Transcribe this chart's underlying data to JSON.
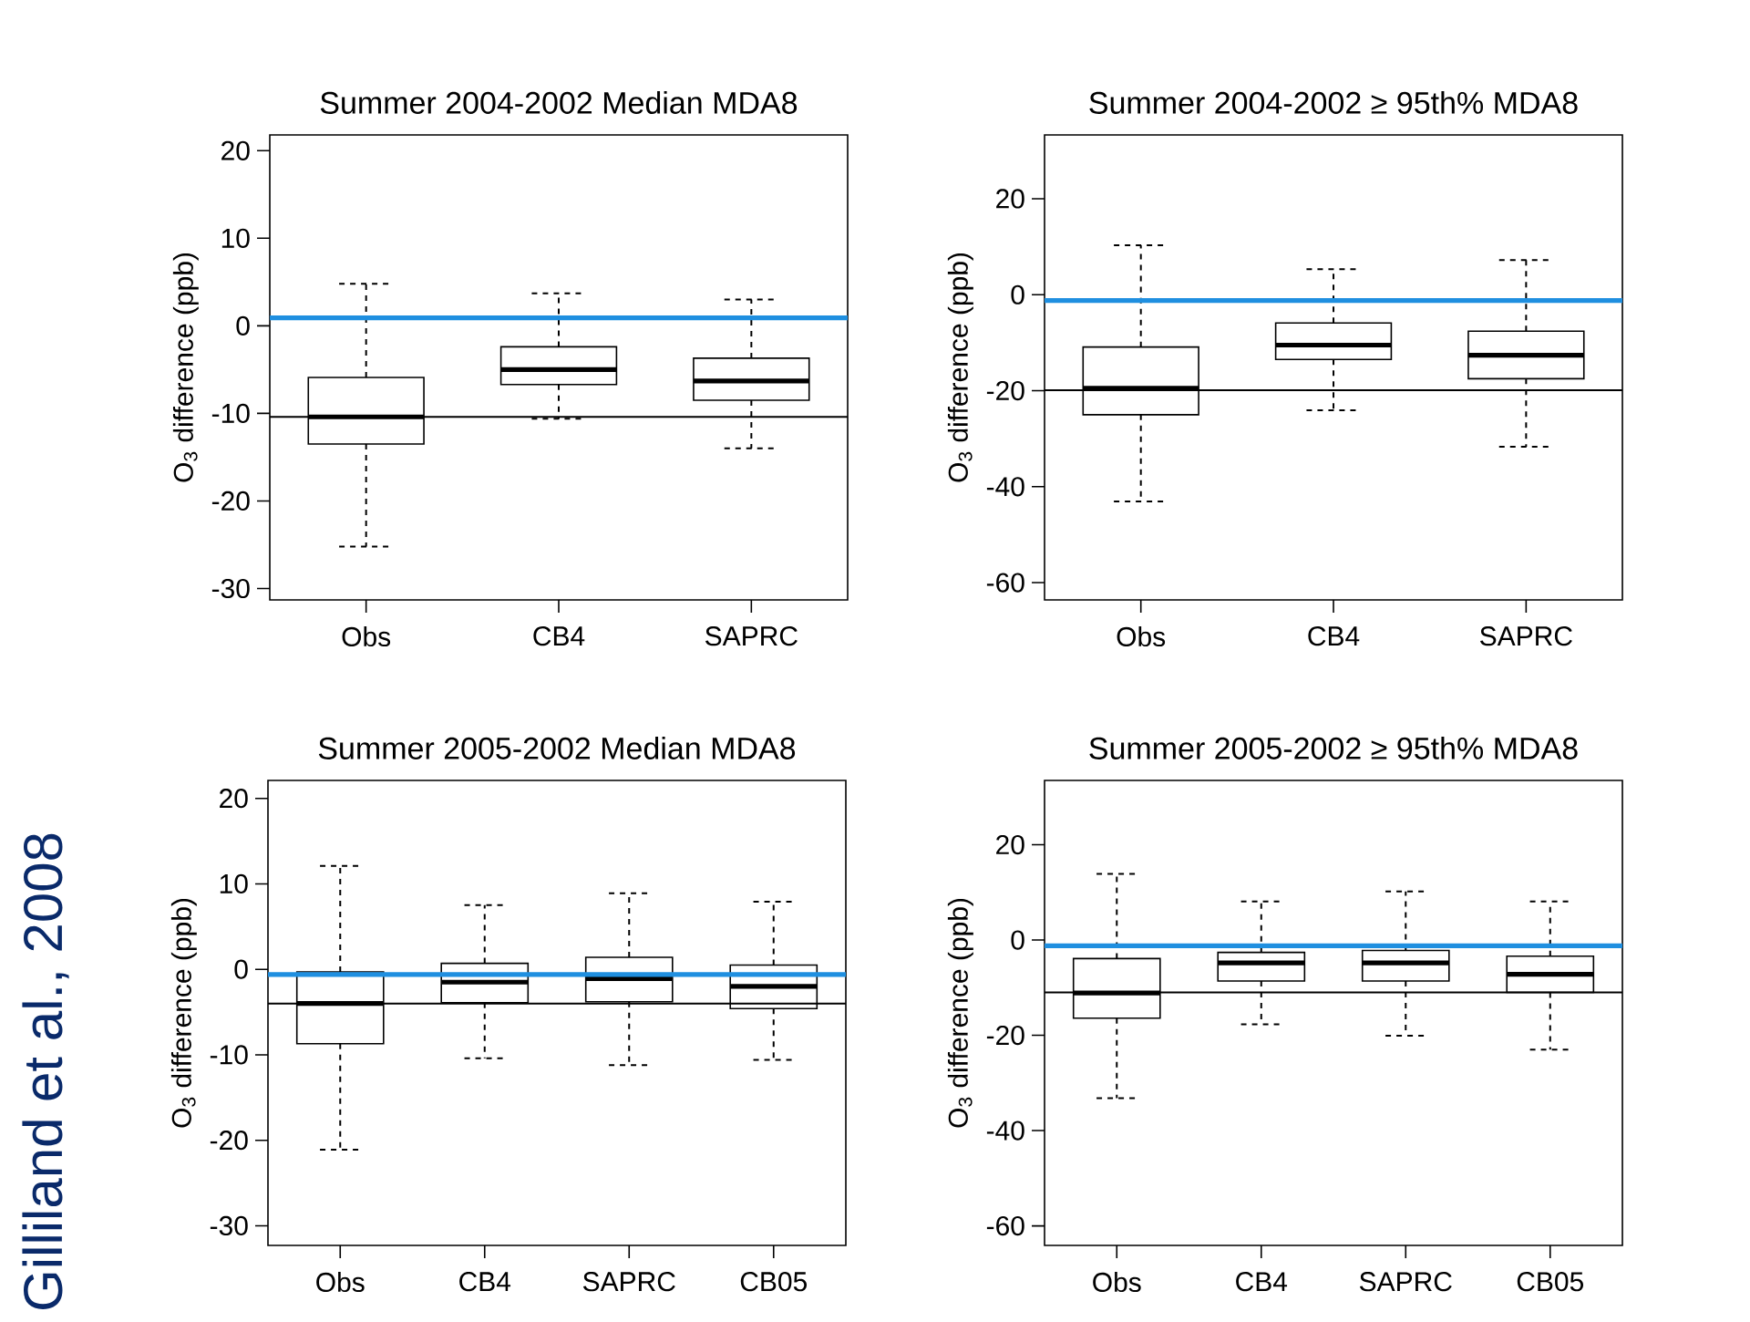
{
  "chart_data": [
    {
      "type": "box",
      "title": "Summer 2004-2002 Median MDA8",
      "ylabel": "O$_{3}$ difference (ppb)",
      "categories": [
        "Obs",
        "CB4",
        "SAPRC"
      ],
      "ylim": [
        -31.3,
        21.8
      ],
      "yticks": [
        -30,
        -20,
        -10,
        0,
        10,
        20
      ],
      "boxes": [
        {
          "low": -25.2,
          "q1": -13.5,
          "median": -10.4,
          "q3": -5.9,
          "high": 4.8
        },
        {
          "low": -10.6,
          "q1": -6.7,
          "median": -5.0,
          "q3": -2.4,
          "high": 3.7
        },
        {
          "low": -14.0,
          "q1": -8.5,
          "median": -6.3,
          "q3": -3.7,
          "high": 3.0
        }
      ],
      "ref_lines": [
        {
          "axis": "y",
          "value": 0.9,
          "color": "#1f8fe0"
        },
        {
          "axis": "y",
          "value": -10.4,
          "color": "#000000"
        }
      ]
    },
    {
      "type": "box",
      "title": "Summer 2004-2002 ≥ 95th% MDA8",
      "ylabel": "O$_{3}$ difference (ppb)",
      "categories": [
        "Obs",
        "CB4",
        "SAPRC"
      ],
      "ylim": [
        -63.6,
        33.3
      ],
      "yticks": [
        -60,
        -40,
        -20,
        0,
        20
      ],
      "boxes": [
        {
          "low": -43.1,
          "q1": -25.0,
          "median": -19.5,
          "q3": -10.9,
          "high": 10.3
        },
        {
          "low": -24.1,
          "q1": -13.5,
          "median": -10.5,
          "q3": -5.9,
          "high": 5.3
        },
        {
          "low": -31.7,
          "q1": -17.5,
          "median": -12.6,
          "q3": -7.6,
          "high": 7.2
        }
      ],
      "ref_lines": [
        {
          "axis": "y",
          "value": -1.2,
          "color": "#1f8fe0"
        },
        {
          "axis": "y",
          "value": -19.9,
          "color": "#000000"
        }
      ]
    },
    {
      "type": "box",
      "title": "Summer 2005-2002 Median MDA8",
      "ylabel": "O$_{3}$ difference (ppb)",
      "categories": [
        "Obs",
        "CB4",
        "SAPRC",
        "CB05"
      ],
      "ylim": [
        -32.3,
        22.1
      ],
      "yticks": [
        -30,
        -20,
        -10,
        0,
        10,
        20
      ],
      "boxes": [
        {
          "low": -21.1,
          "q1": -8.7,
          "median": -4.0,
          "q3": -0.3,
          "high": 12.1
        },
        {
          "low": -10.4,
          "q1": -3.9,
          "median": -1.5,
          "q3": 0.7,
          "high": 7.5
        },
        {
          "low": -11.2,
          "q1": -3.8,
          "median": -1.1,
          "q3": 1.4,
          "high": 8.9
        },
        {
          "low": -10.6,
          "q1": -4.6,
          "median": -2.0,
          "q3": 0.5,
          "high": 7.9
        }
      ],
      "ref_lines": [
        {
          "axis": "y",
          "value": -0.6,
          "color": "#1f8fe0"
        },
        {
          "axis": "y",
          "value": -4.0,
          "color": "#000000"
        }
      ],
      "annotations": [
        "Gilliland et al., 2008"
      ]
    },
    {
      "type": "box",
      "title": "Summer 2005-2002 ≥ 95th% MDA8",
      "ylabel": "O$_{3}$ difference (ppb)",
      "categories": [
        "Obs",
        "CB4",
        "SAPRC",
        "CB05"
      ],
      "ylim": [
        -64.1,
        33.5
      ],
      "yticks": [
        -60,
        -40,
        -20,
        0,
        20
      ],
      "boxes": [
        {
          "low": -33.2,
          "q1": -16.4,
          "median": -11.1,
          "q3": -3.9,
          "high": 13.9
        },
        {
          "low": -17.7,
          "q1": -8.6,
          "median": -4.8,
          "q3": -2.6,
          "high": 8.1
        },
        {
          "low": -20.1,
          "q1": -8.6,
          "median": -4.8,
          "q3": -2.2,
          "high": 10.2
        },
        {
          "low": -23.0,
          "q1": -11.0,
          "median": -7.2,
          "q3": -3.4,
          "high": 8.1
        }
      ],
      "ref_lines": [
        {
          "axis": "y",
          "value": -1.2,
          "color": "#1f8fe0"
        },
        {
          "axis": "y",
          "value": -11.0,
          "color": "#000000"
        }
      ]
    }
  ]
}
